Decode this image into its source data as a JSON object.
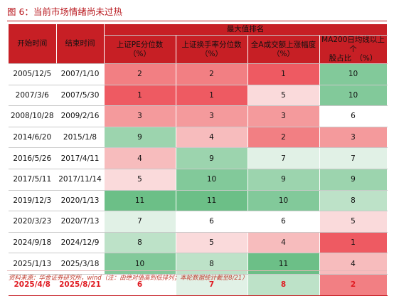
{
  "title": "图 6：当前市场情绪尚未过热",
  "header": {
    "start": "开始时间",
    "end": "结束时间",
    "group": "最大值排名",
    "metrics": [
      "上证PE分位数\n（%）",
      "上证换手率分位数\n（%）",
      "全A成交额上涨幅度\n（%）",
      "MA200日均线以上个\n股占比　（%）"
    ]
  },
  "colors": {
    "header": "#c71f25",
    "rank": {
      "1": "#ee5a62",
      "2": "#f27f83",
      "3": "#f49a9c",
      "4": "#f7bcbd",
      "5": "#fadadb",
      "6": "#ffffff",
      "7": "#e1f1e6",
      "8": "#bde2c8",
      "9": "#9cd4ae",
      "10": "#82c99a",
      "11": "#6cbf87"
    }
  },
  "rows": [
    {
      "start": "2005/12/5",
      "end": "2007/1/10",
      "ranks": [
        2,
        2,
        1,
        10
      ]
    },
    {
      "start": "2007/3/6",
      "end": "2007/5/30",
      "ranks": [
        1,
        1,
        5,
        10
      ]
    },
    {
      "start": "2008/10/28",
      "end": "2009/2/16",
      "ranks": [
        3,
        3,
        3,
        6
      ]
    },
    {
      "start": "2014/6/20",
      "end": "2015/1/8",
      "ranks": [
        9,
        4,
        2,
        3
      ]
    },
    {
      "start": "2016/5/26",
      "end": "2017/4/11",
      "ranks": [
        4,
        9,
        7,
        7
      ]
    },
    {
      "start": "2017/5/11",
      "end": "2017/11/14",
      "ranks": [
        5,
        10,
        9,
        9
      ]
    },
    {
      "start": "2019/12/3",
      "end": "2020/1/13",
      "ranks": [
        11,
        11,
        10,
        8
      ]
    },
    {
      "start": "2020/3/23",
      "end": "2020/7/13",
      "ranks": [
        7,
        6,
        6,
        5
      ]
    },
    {
      "start": "2024/9/18",
      "end": "2024/12/9",
      "ranks": [
        8,
        5,
        4,
        1
      ]
    },
    {
      "start": "2025/1/13",
      "end": "2025/3/18",
      "ranks": [
        10,
        8,
        11,
        4
      ]
    },
    {
      "start": "2025/4/8",
      "end": "2025/8/21",
      "ranks": [
        6,
        7,
        8,
        2
      ]
    }
  ],
  "footnote": "资料来源：华金证券研究所，wind（注：由绝对值高到低排列；本轮数据统计截至8/21）"
}
